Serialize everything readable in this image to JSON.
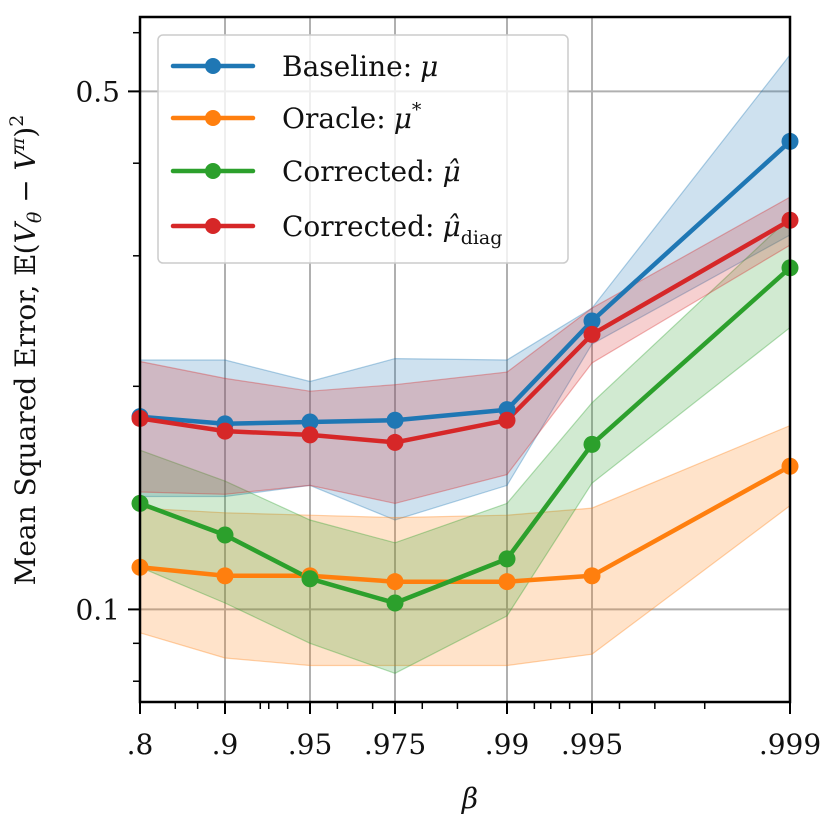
{
  "chart_data": {
    "type": "line",
    "title": "",
    "x_axis": {
      "label": "β",
      "scale": "log of 1/(1-β)",
      "ticks": [
        0.8,
        0.9,
        0.95,
        0.975,
        0.99,
        0.995,
        0.999
      ],
      "tick_labels": [
        ".8",
        ".9",
        ".95",
        ".975",
        ".99",
        ".995",
        ".999"
      ],
      "lim": [
        0.8,
        0.999
      ]
    },
    "y_axis": {
      "label": "Mean Squared Error, 𝔼(V_θ − V^π)²",
      "scale": "log",
      "ticks": [
        0.1,
        0.5
      ],
      "tick_labels": [
        "0.1",
        "0.5"
      ],
      "lim": [
        0.075,
        0.63
      ]
    },
    "grid": true,
    "legend_position": "top-left",
    "x": [
      0.8,
      0.9,
      0.95,
      0.975,
      0.99,
      0.995,
      0.999
    ],
    "series": [
      {
        "name": "Baseline: μ",
        "color": "#1f77b4",
        "values": [
          0.182,
          0.178,
          0.179,
          0.18,
          0.186,
          0.245,
          0.428
        ],
        "band_low": [
          0.142,
          0.142,
          0.147,
          0.132,
          0.147,
          0.228,
          0.32
        ],
        "band_high": [
          0.217,
          0.217,
          0.203,
          0.218,
          0.217,
          0.255,
          0.56
        ]
      },
      {
        "name": "Oracle: μ*",
        "color": "#ff7f0e",
        "values": [
          0.114,
          0.111,
          0.111,
          0.109,
          0.109,
          0.111,
          0.156
        ],
        "band_low": [
          0.093,
          0.086,
          0.084,
          0.084,
          0.084,
          0.087,
          0.138
        ],
        "band_high": [
          0.137,
          0.135,
          0.134,
          0.133,
          0.134,
          0.137,
          0.177
        ]
      },
      {
        "name": "Corrected: μ̂",
        "color": "#2ca02c",
        "values": [
          0.139,
          0.126,
          0.11,
          0.102,
          0.117,
          0.167,
          0.289
        ],
        "band_low": [
          0.114,
          0.102,
          0.09,
          0.082,
          0.098,
          0.148,
          0.24
        ],
        "band_high": [
          0.164,
          0.149,
          0.132,
          0.123,
          0.139,
          0.19,
          0.338
        ]
      },
      {
        "name": "Corrected: μ̂_diag",
        "color": "#d62728",
        "values": [
          0.181,
          0.174,
          0.172,
          0.168,
          0.18,
          0.235,
          0.335
        ],
        "band_low": [
          0.144,
          0.143,
          0.147,
          0.139,
          0.152,
          0.215,
          0.31
        ],
        "band_high": [
          0.216,
          0.205,
          0.197,
          0.201,
          0.209,
          0.255,
          0.36
        ]
      }
    ]
  },
  "legend": {
    "items": [
      {
        "prefix": "Baseline:",
        "symbol": "μ",
        "sup": "",
        "sub": ""
      },
      {
        "prefix": "Oracle:",
        "symbol": "μ",
        "sup": "*",
        "sub": ""
      },
      {
        "prefix": "Corrected:",
        "symbol": "μ̂",
        "sup": "",
        "sub": ""
      },
      {
        "prefix": "Corrected:",
        "symbol": "μ̂",
        "sup": "",
        "sub": "diag"
      }
    ]
  },
  "ylabel_parts": {
    "text": "Mean Squared Error, ",
    "E": "𝔼",
    "open": "(",
    "V": "V",
    "theta": "θ",
    "minus": " − ",
    "pi": "π",
    "close": ")",
    "square": "2"
  }
}
